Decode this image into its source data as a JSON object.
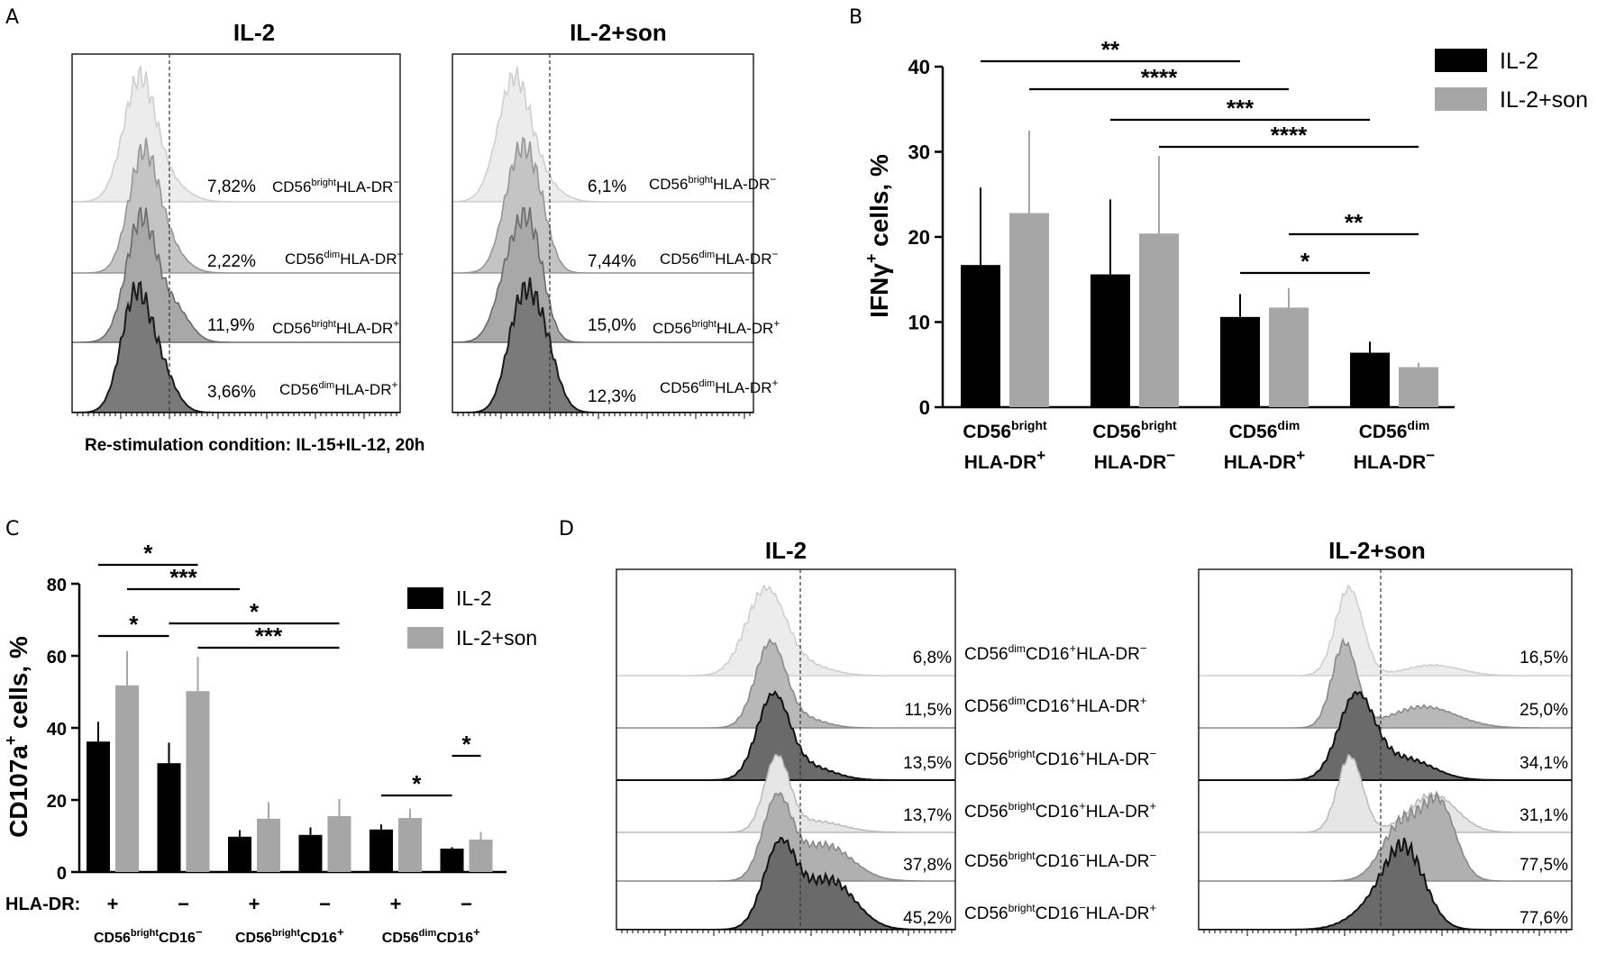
{
  "labels": {
    "A": "A",
    "B": "B",
    "C": "C",
    "D": "D"
  },
  "colors": {
    "il2": "#000000",
    "son": "#a6a6a6"
  },
  "panelA": {
    "titles": [
      "IL-2",
      "IL-2+son"
    ],
    "caption": "Re-stimulation condition: IL-15+IL-12, 20h",
    "populations": [
      {
        "main": "CD56",
        "sup": "bright",
        "rest": "HLA-DR",
        "sign": "−"
      },
      {
        "main": "CD56",
        "sup": "dim",
        "rest": "HLA-DR",
        "sign": "−"
      },
      {
        "main": "CD56",
        "sup": "bright",
        "rest": "HLA-DR",
        "sign": "+"
      },
      {
        "main": "CD56",
        "sup": "dim",
        "rest": "HLA-DR",
        "sign": "+"
      }
    ],
    "left_pcts": [
      "7,82%",
      "2,22%",
      "11,9%",
      "3,66%"
    ],
    "right_pcts": [
      "6,1%",
      "7,44%",
      "15,0%",
      "12,3%"
    ]
  },
  "panelD": {
    "titles": [
      "IL-2",
      "IL-2+son"
    ],
    "populations": [
      {
        "a": "CD56",
        "s1": "dim",
        "b": "CD16",
        "s2": "+",
        "c": "HLA-DR",
        "s3": "−"
      },
      {
        "a": "CD56",
        "s1": "dim",
        "b": "CD16",
        "s2": "+",
        "c": "HLA-DR",
        "s3": "+"
      },
      {
        "a": "CD56",
        "s1": "bright",
        "b": "CD16",
        "s2": "+",
        "c": "HLA-DR",
        "s3": "−"
      },
      {
        "a": "CD56",
        "s1": "bright",
        "b": "CD16",
        "s2": "+",
        "c": "HLA-DR",
        "s3": "+"
      },
      {
        "a": "CD56",
        "s1": "bright",
        "b": "CD16",
        "s2": "−",
        "c": "HLA-DR",
        "s3": "−"
      },
      {
        "a": "CD56",
        "s1": "bright",
        "b": "CD16",
        "s2": "−",
        "c": "HLA-DR",
        "s3": "+"
      }
    ],
    "left_pcts": [
      "6,8%",
      "11,5%",
      "13,5%",
      "13,7%",
      "37,8%",
      "45,2%"
    ],
    "right_pcts": [
      "16,5%",
      "25,0%",
      "34,1%",
      "31,1%",
      "77,5%",
      "77,6%"
    ]
  },
  "chart_data": [
    {
      "type": "bar",
      "panel": "B",
      "ylabel": "IFNγ+ cells, %",
      "ylim": [
        0,
        40
      ],
      "yticks": [
        0,
        10,
        20,
        30,
        40
      ],
      "categories": [
        {
          "l1": "CD56",
          "s1": "bright",
          "l2": "HLA-DR",
          "s2": "+"
        },
        {
          "l1": "CD56",
          "s1": "bright",
          "l2": "HLA-DR",
          "s2": "−"
        },
        {
          "l1": "CD56",
          "s1": "dim",
          "l2": "HLA-DR",
          "s2": "+"
        },
        {
          "l1": "CD56",
          "s1": "dim",
          "l2": "HLA-DR",
          "s2": "−"
        }
      ],
      "series": [
        {
          "name": "IL-2",
          "values": [
            16.7,
            15.6,
            10.6,
            6.4
          ],
          "errors": [
            9.1,
            8.8,
            2.7,
            1.3
          ]
        },
        {
          "name": "IL-2+son",
          "values": [
            22.8,
            20.4,
            11.7,
            4.7
          ],
          "errors": [
            9.7,
            9.1,
            2.3,
            0.5
          ]
        }
      ],
      "significance": [
        {
          "label": "**",
          "from": [
            0,
            0
          ],
          "to": [
            2,
            0
          ]
        },
        {
          "label": "****",
          "from": [
            0,
            1
          ],
          "to": [
            2,
            1
          ]
        },
        {
          "label": "***",
          "from": [
            1,
            0
          ],
          "to": [
            3,
            0
          ]
        },
        {
          "label": "****",
          "from": [
            1,
            1
          ],
          "to": [
            3,
            1
          ]
        },
        {
          "label": "**",
          "from": [
            2,
            1
          ],
          "to": [
            3,
            1
          ]
        },
        {
          "label": "*",
          "from": [
            2,
            0
          ],
          "to": [
            3,
            0
          ]
        }
      ]
    },
    {
      "type": "bar",
      "panel": "C",
      "ylabel": "CD107a+ cells, %",
      "ylim": [
        0,
        80
      ],
      "yticks": [
        0,
        20,
        40,
        60,
        80
      ],
      "row_label": "HLA-DR:",
      "hla_signs": [
        "+",
        "−",
        "+",
        "−",
        "+",
        "−"
      ],
      "groups": [
        {
          "a": "CD56",
          "s1": "bright",
          "b": "CD16",
          "s2": "−"
        },
        {
          "a": "CD56",
          "s1": "bright",
          "b": "CD16",
          "s2": "+"
        },
        {
          "a": "CD56",
          "s1": "dim",
          "b": "CD16",
          "s2": "+"
        }
      ],
      "series": [
        {
          "name": "IL-2",
          "values": [
            36.2,
            30.2,
            9.8,
            10.3,
            11.8,
            6.5
          ],
          "errors": [
            5.5,
            5.7,
            1.8,
            2.1,
            1.4,
            0.4
          ]
        },
        {
          "name": "IL-2+son",
          "values": [
            51.8,
            50.2,
            14.8,
            15.5,
            15.0,
            9.0
          ],
          "errors": [
            9.5,
            9.5,
            4.6,
            4.8,
            2.6,
            2.1
          ]
        }
      ],
      "significance": [
        {
          "label": "*",
          "from": [
            0,
            0
          ],
          "to": [
            1,
            1
          ]
        },
        {
          "label": "***",
          "from": [
            0,
            1
          ],
          "to": [
            2,
            0
          ]
        },
        {
          "label": "*",
          "from": [
            0,
            0
          ],
          "to": [
            1,
            0
          ]
        },
        {
          "label": "*",
          "from": [
            1,
            0
          ],
          "to": [
            3,
            1
          ]
        },
        {
          "label": "***",
          "from": [
            1,
            1
          ],
          "to": [
            3,
            1
          ]
        },
        {
          "label": "*",
          "from": [
            5,
            0
          ],
          "to": [
            5,
            1
          ]
        },
        {
          "label": "*",
          "from": [
            4,
            0
          ],
          "to": [
            5,
            0
          ]
        }
      ]
    }
  ]
}
